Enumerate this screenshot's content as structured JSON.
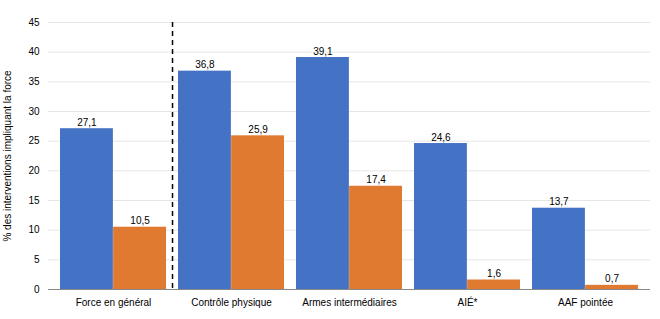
{
  "chart_data": {
    "type": "bar",
    "categories": [
      "Force en général",
      "Contrôle physique",
      "Armes intermédiaires",
      "AIÉ*",
      "AAF pointée"
    ],
    "series": [
      {
        "color": "#4472C4",
        "values": [
          27.1,
          36.8,
          39.1,
          24.6,
          13.7
        ],
        "value_labels": [
          "27,1",
          "36,8",
          "39,1",
          "24,6",
          "13,7"
        ]
      },
      {
        "color": "#E07A30",
        "values": [
          10.5,
          25.9,
          17.4,
          1.6,
          0.7
        ],
        "value_labels": [
          "10,5",
          "25,9",
          "17,4",
          "1,6",
          "0,7"
        ]
      }
    ],
    "ylabel": "% des interventions impliquant la force",
    "ylim": [
      0,
      45
    ],
    "yticks": [
      0,
      5,
      10,
      15,
      20,
      25,
      30,
      35,
      40,
      45
    ],
    "grid": true,
    "data_labels": true
  }
}
